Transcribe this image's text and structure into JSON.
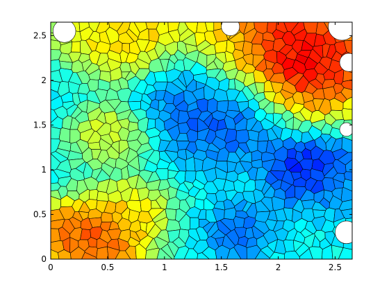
{
  "chart_data": {
    "type": "heatmap",
    "subtype": "voronoi-colored-cells",
    "title": "",
    "xlabel": "",
    "ylabel": "",
    "xlim": [
      0,
      2.65
    ],
    "ylim": [
      0,
      2.65
    ],
    "x_ticks": [
      {
        "value": 0,
        "label": "0"
      },
      {
        "value": 0.5,
        "label": "0.5"
      },
      {
        "value": 1,
        "label": "1"
      },
      {
        "value": 1.5,
        "label": "1.5"
      },
      {
        "value": 2,
        "label": "2"
      },
      {
        "value": 2.5,
        "label": "2.5"
      }
    ],
    "y_ticks": [
      {
        "value": 0,
        "label": "0"
      },
      {
        "value": 0.5,
        "label": "0.5"
      },
      {
        "value": 1,
        "label": "1"
      },
      {
        "value": 1.5,
        "label": "1.5"
      },
      {
        "value": 2,
        "label": "2"
      },
      {
        "value": 2.5,
        "label": "2.5"
      }
    ],
    "grid": false,
    "legend": "none",
    "colormap": "jet",
    "cell_outline_color": "#000000",
    "approx_cell_count": 750,
    "value_field": {
      "description_of_visible_pattern": "relative color level 0 (dark blue) to 1 (dark red)",
      "background_level": 0.38,
      "features": [
        {
          "x": 2.3,
          "y": 2.2,
          "level": 1.0,
          "spread": 0.35
        },
        {
          "x": 1.9,
          "y": 2.5,
          "level": 0.95,
          "spread": 0.35
        },
        {
          "x": 0.4,
          "y": 0.2,
          "level": 0.92,
          "spread": 0.25
        },
        {
          "x": 0.05,
          "y": 0.3,
          "level": 0.8,
          "spread": 0.2
        },
        {
          "x": 0.8,
          "y": 2.5,
          "level": 0.75,
          "spread": 0.25
        },
        {
          "x": 0.35,
          "y": 2.4,
          "level": 0.7,
          "spread": 0.25
        },
        {
          "x": 0.5,
          "y": 1.4,
          "level": 0.65,
          "spread": 0.2
        },
        {
          "x": 0.7,
          "y": 0.55,
          "level": 0.7,
          "spread": 0.2
        },
        {
          "x": 1.6,
          "y": 2.4,
          "level": 0.6,
          "spread": 0.2
        },
        {
          "x": 1.5,
          "y": 1.6,
          "level": 0.15,
          "spread": 0.3
        },
        {
          "x": 2.3,
          "y": 1.0,
          "level": 0.05,
          "spread": 0.22
        },
        {
          "x": 1.2,
          "y": 1.9,
          "level": 0.25,
          "spread": 0.25
        },
        {
          "x": 1.65,
          "y": 0.3,
          "level": 0.2,
          "spread": 0.18
        },
        {
          "x": 2.6,
          "y": 0.8,
          "level": 0.3,
          "spread": 0.25
        },
        {
          "x": 0.05,
          "y": 2.0,
          "level": 0.35,
          "spread": 0.2
        }
      ]
    }
  }
}
